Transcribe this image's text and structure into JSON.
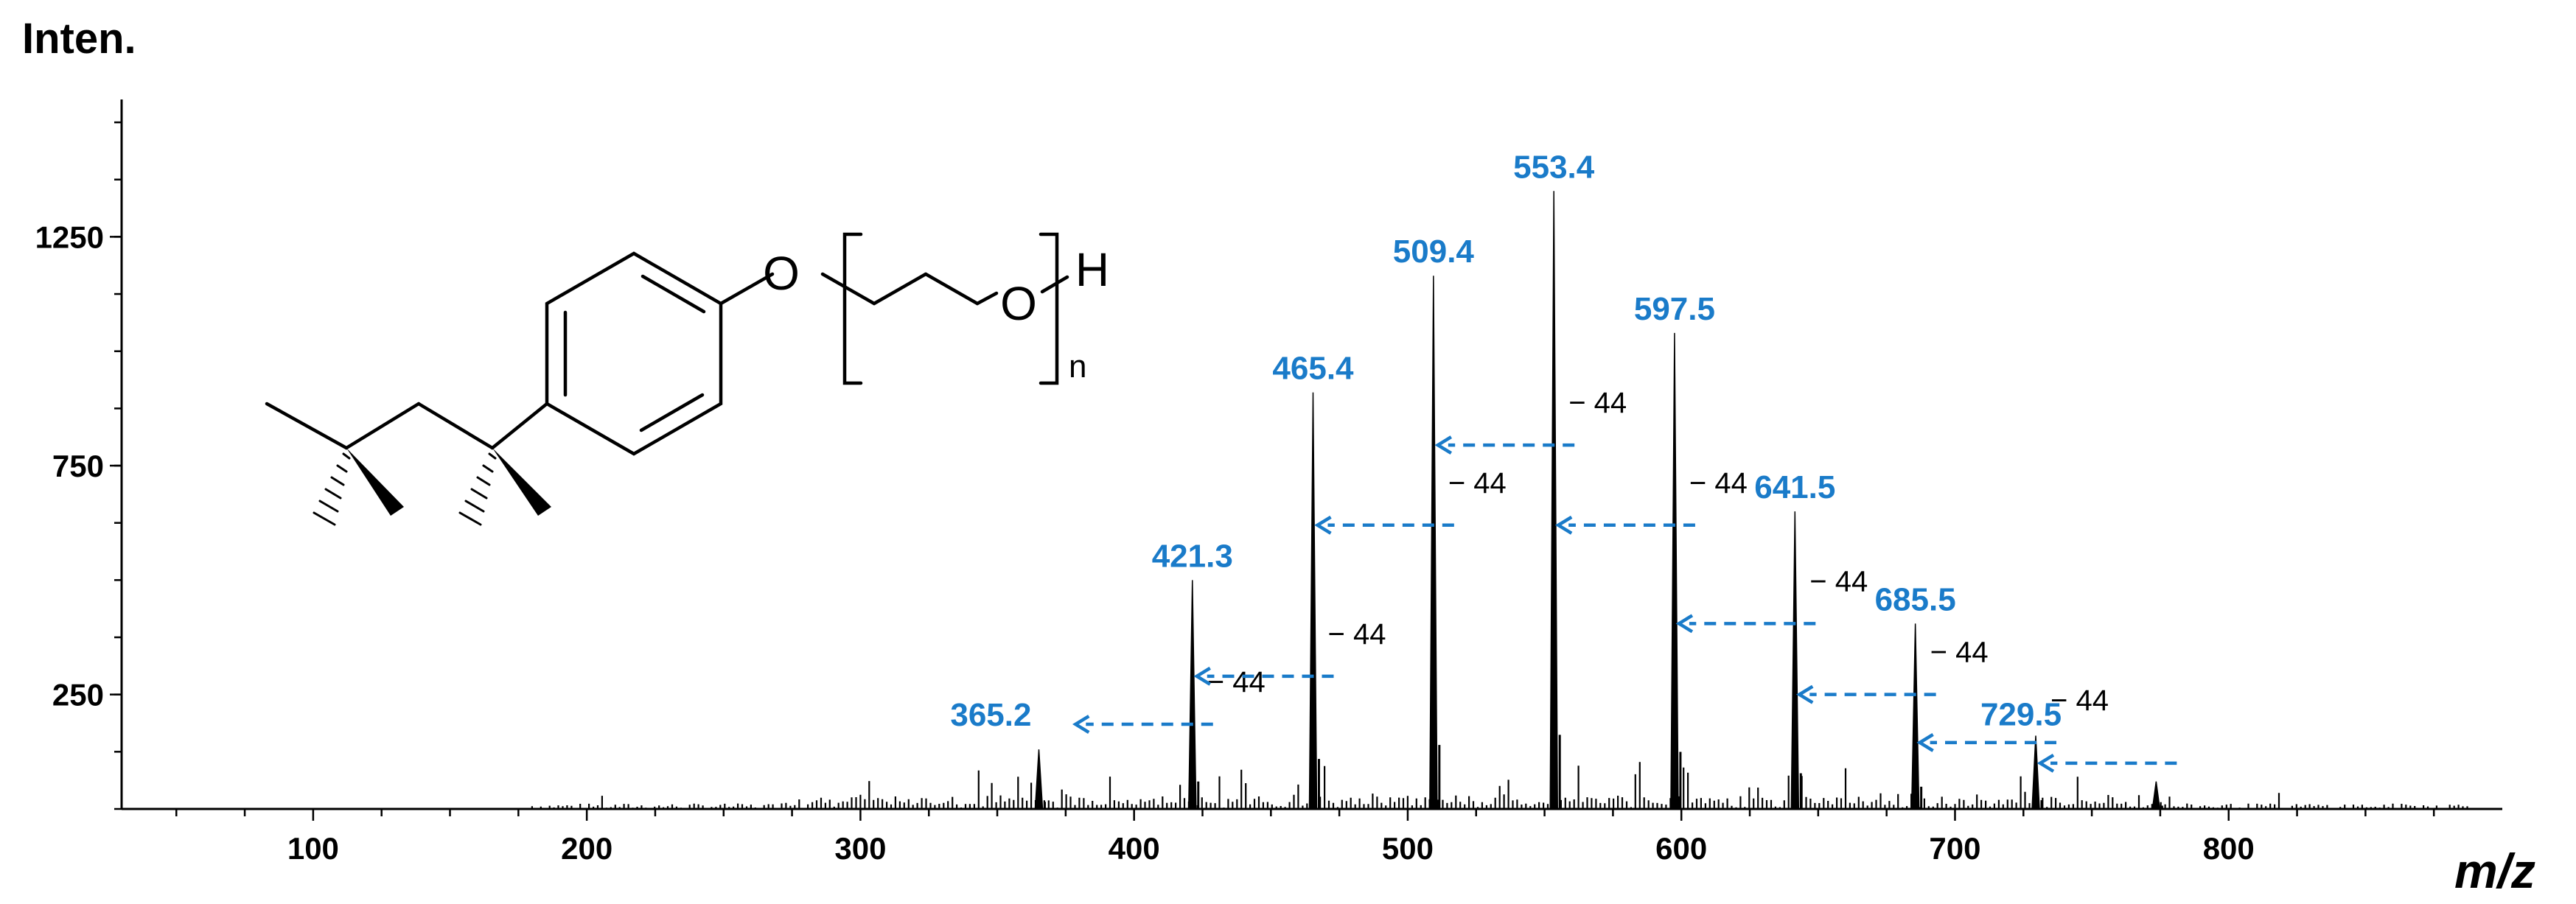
{
  "chart_data": {
    "type": "line",
    "title": "",
    "ylabel": "Inten.",
    "xlabel": "m/z",
    "xlim": [
      30,
      900
    ],
    "ylim": [
      0,
      1550
    ],
    "x_ticks": [
      100,
      200,
      300,
      400,
      500,
      600,
      700,
      800
    ],
    "y_ticks": [
      250,
      750,
      1250
    ],
    "grid": false,
    "legend": "none",
    "series": [
      {
        "x": [
          365.2,
          421.3,
          465.4,
          509.4,
          553.4,
          597.5,
          641.5,
          685.5,
          729.5,
          773.5
        ],
        "y": [
          130,
          500,
          910,
          1165,
          1350,
          1040,
          650,
          405,
          160,
          60
        ]
      }
    ],
    "peak_labels": [
      {
        "label": "365.2",
        "x": 365.2,
        "y": 130
      },
      {
        "label": "421.3",
        "x": 421.3,
        "y": 500
      },
      {
        "label": "465.4",
        "x": 465.4,
        "y": 910
      },
      {
        "label": "509.4",
        "x": 509.4,
        "y": 1165
      },
      {
        "label": "553.4",
        "x": 553.4,
        "y": 1350
      },
      {
        "label": "597.5",
        "x": 597.5,
        "y": 1040
      },
      {
        "label": "641.5",
        "x": 641.5,
        "y": 650
      },
      {
        "label": "685.5",
        "x": 685.5,
        "y": 405
      },
      {
        "label": "729.5",
        "x": 729.5,
        "y": 160
      }
    ],
    "loss_annotations": [
      {
        "label": "− 44",
        "from": 421.3,
        "to": 377,
        "y": 185
      },
      {
        "label": "− 44",
        "from": 465.4,
        "to": 421.3,
        "y": 290
      },
      {
        "label": "− 44",
        "from": 509.4,
        "to": 465.4,
        "y": 620
      },
      {
        "label": "− 44",
        "from": 553.4,
        "to": 509.4,
        "y": 795
      },
      {
        "label": "− 44",
        "from": 597.5,
        "to": 553.4,
        "y": 620
      },
      {
        "label": "− 44",
        "from": 641.5,
        "to": 597.5,
        "y": 405
      },
      {
        "label": "− 44",
        "from": 685.5,
        "to": 641.5,
        "y": 250
      },
      {
        "label": "− 44",
        "from": 729.5,
        "to": 685.5,
        "y": 145
      },
      {
        "label": "",
        "from": 773.5,
        "to": 729.5,
        "y": 100
      }
    ],
    "colors": {
      "peak_label": "#1a7bc9",
      "arrow": "#1a7bc9",
      "trace": "#000000"
    }
  },
  "structure": {
    "atoms": [
      "O",
      "O",
      "H"
    ],
    "subscript": "n"
  }
}
